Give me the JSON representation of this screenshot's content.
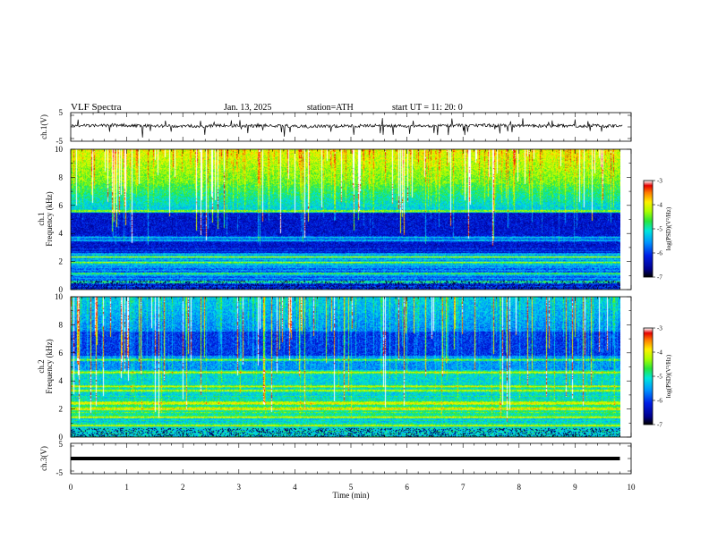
{
  "header": {
    "title": "VLF Spectra",
    "date": "Jan. 13, 2025",
    "station": "station=ATH",
    "start": "start UT =  11: 20: 0"
  },
  "colors": {
    "waveform": "#000000",
    "colormap": [
      "#000000",
      "#0000c8",
      "#0050ff",
      "#00c8ff",
      "#00e060",
      "#80ff00",
      "#ffff00",
      "#ff9000",
      "#ff0000",
      "#ffffff"
    ]
  },
  "chart_data": [
    {
      "type": "line",
      "panel": "ch1-waveform",
      "ylabel": "ch.1(V)",
      "ylim": [
        -5,
        5
      ],
      "yticks": [
        "5",
        "-5"
      ],
      "xlim": [
        0,
        10
      ],
      "description_values": {
        "baseline": 0.4,
        "noise_amplitude": 0.6,
        "spike_max": 2.8
      }
    },
    {
      "type": "heatmap",
      "panel": "ch1-spectrogram",
      "ylabel": "Frequency (kHz)",
      "channel_label": "ch.1",
      "ylim": [
        0,
        10
      ],
      "yticks": [
        "0",
        "2",
        "4",
        "6",
        "8",
        "10"
      ],
      "xlim": [
        0,
        9.8
      ],
      "colorbar": {
        "label": "log(PSD)(V²/Hz)",
        "range": [
          -7,
          -3
        ],
        "ticks": [
          "-3",
          "-4",
          "-5",
          "-6",
          "-7"
        ]
      },
      "bands_khz": [
        0.5,
        1.1,
        1.9,
        2.3,
        3.5,
        3.7,
        5.6
      ]
    },
    {
      "type": "heatmap",
      "panel": "ch2-spectrogram",
      "ylabel": "Frequency (kHz)",
      "channel_label": "ch.2",
      "ylim": [
        0,
        10
      ],
      "yticks": [
        "0",
        "2",
        "4",
        "6",
        "8",
        "10"
      ],
      "xlim": [
        0,
        9.8
      ],
      "colorbar": {
        "label": "log(PSD)(V²/Hz)",
        "range": [
          -7,
          -3
        ],
        "ticks": [
          "-3",
          "-4",
          "-5",
          "-6",
          "-7"
        ]
      },
      "bands_khz": [
        0.8,
        1.4,
        2.0,
        2.4,
        3.3,
        3.6,
        4.6,
        5.5
      ]
    },
    {
      "type": "line",
      "panel": "ch3-waveform",
      "ylabel": "ch.3(V)",
      "ylim": [
        -5,
        5
      ],
      "yticks": [
        "5",
        "-5"
      ],
      "xlim": [
        0,
        9.8
      ],
      "description_values": {
        "baseline": 0.0
      }
    }
  ],
  "xaxis": {
    "label": "Time (min)",
    "ticks": [
      "0",
      "1",
      "2",
      "3",
      "4",
      "5",
      "6",
      "7",
      "8",
      "9",
      "10"
    ],
    "range": [
      0,
      10
    ]
  }
}
